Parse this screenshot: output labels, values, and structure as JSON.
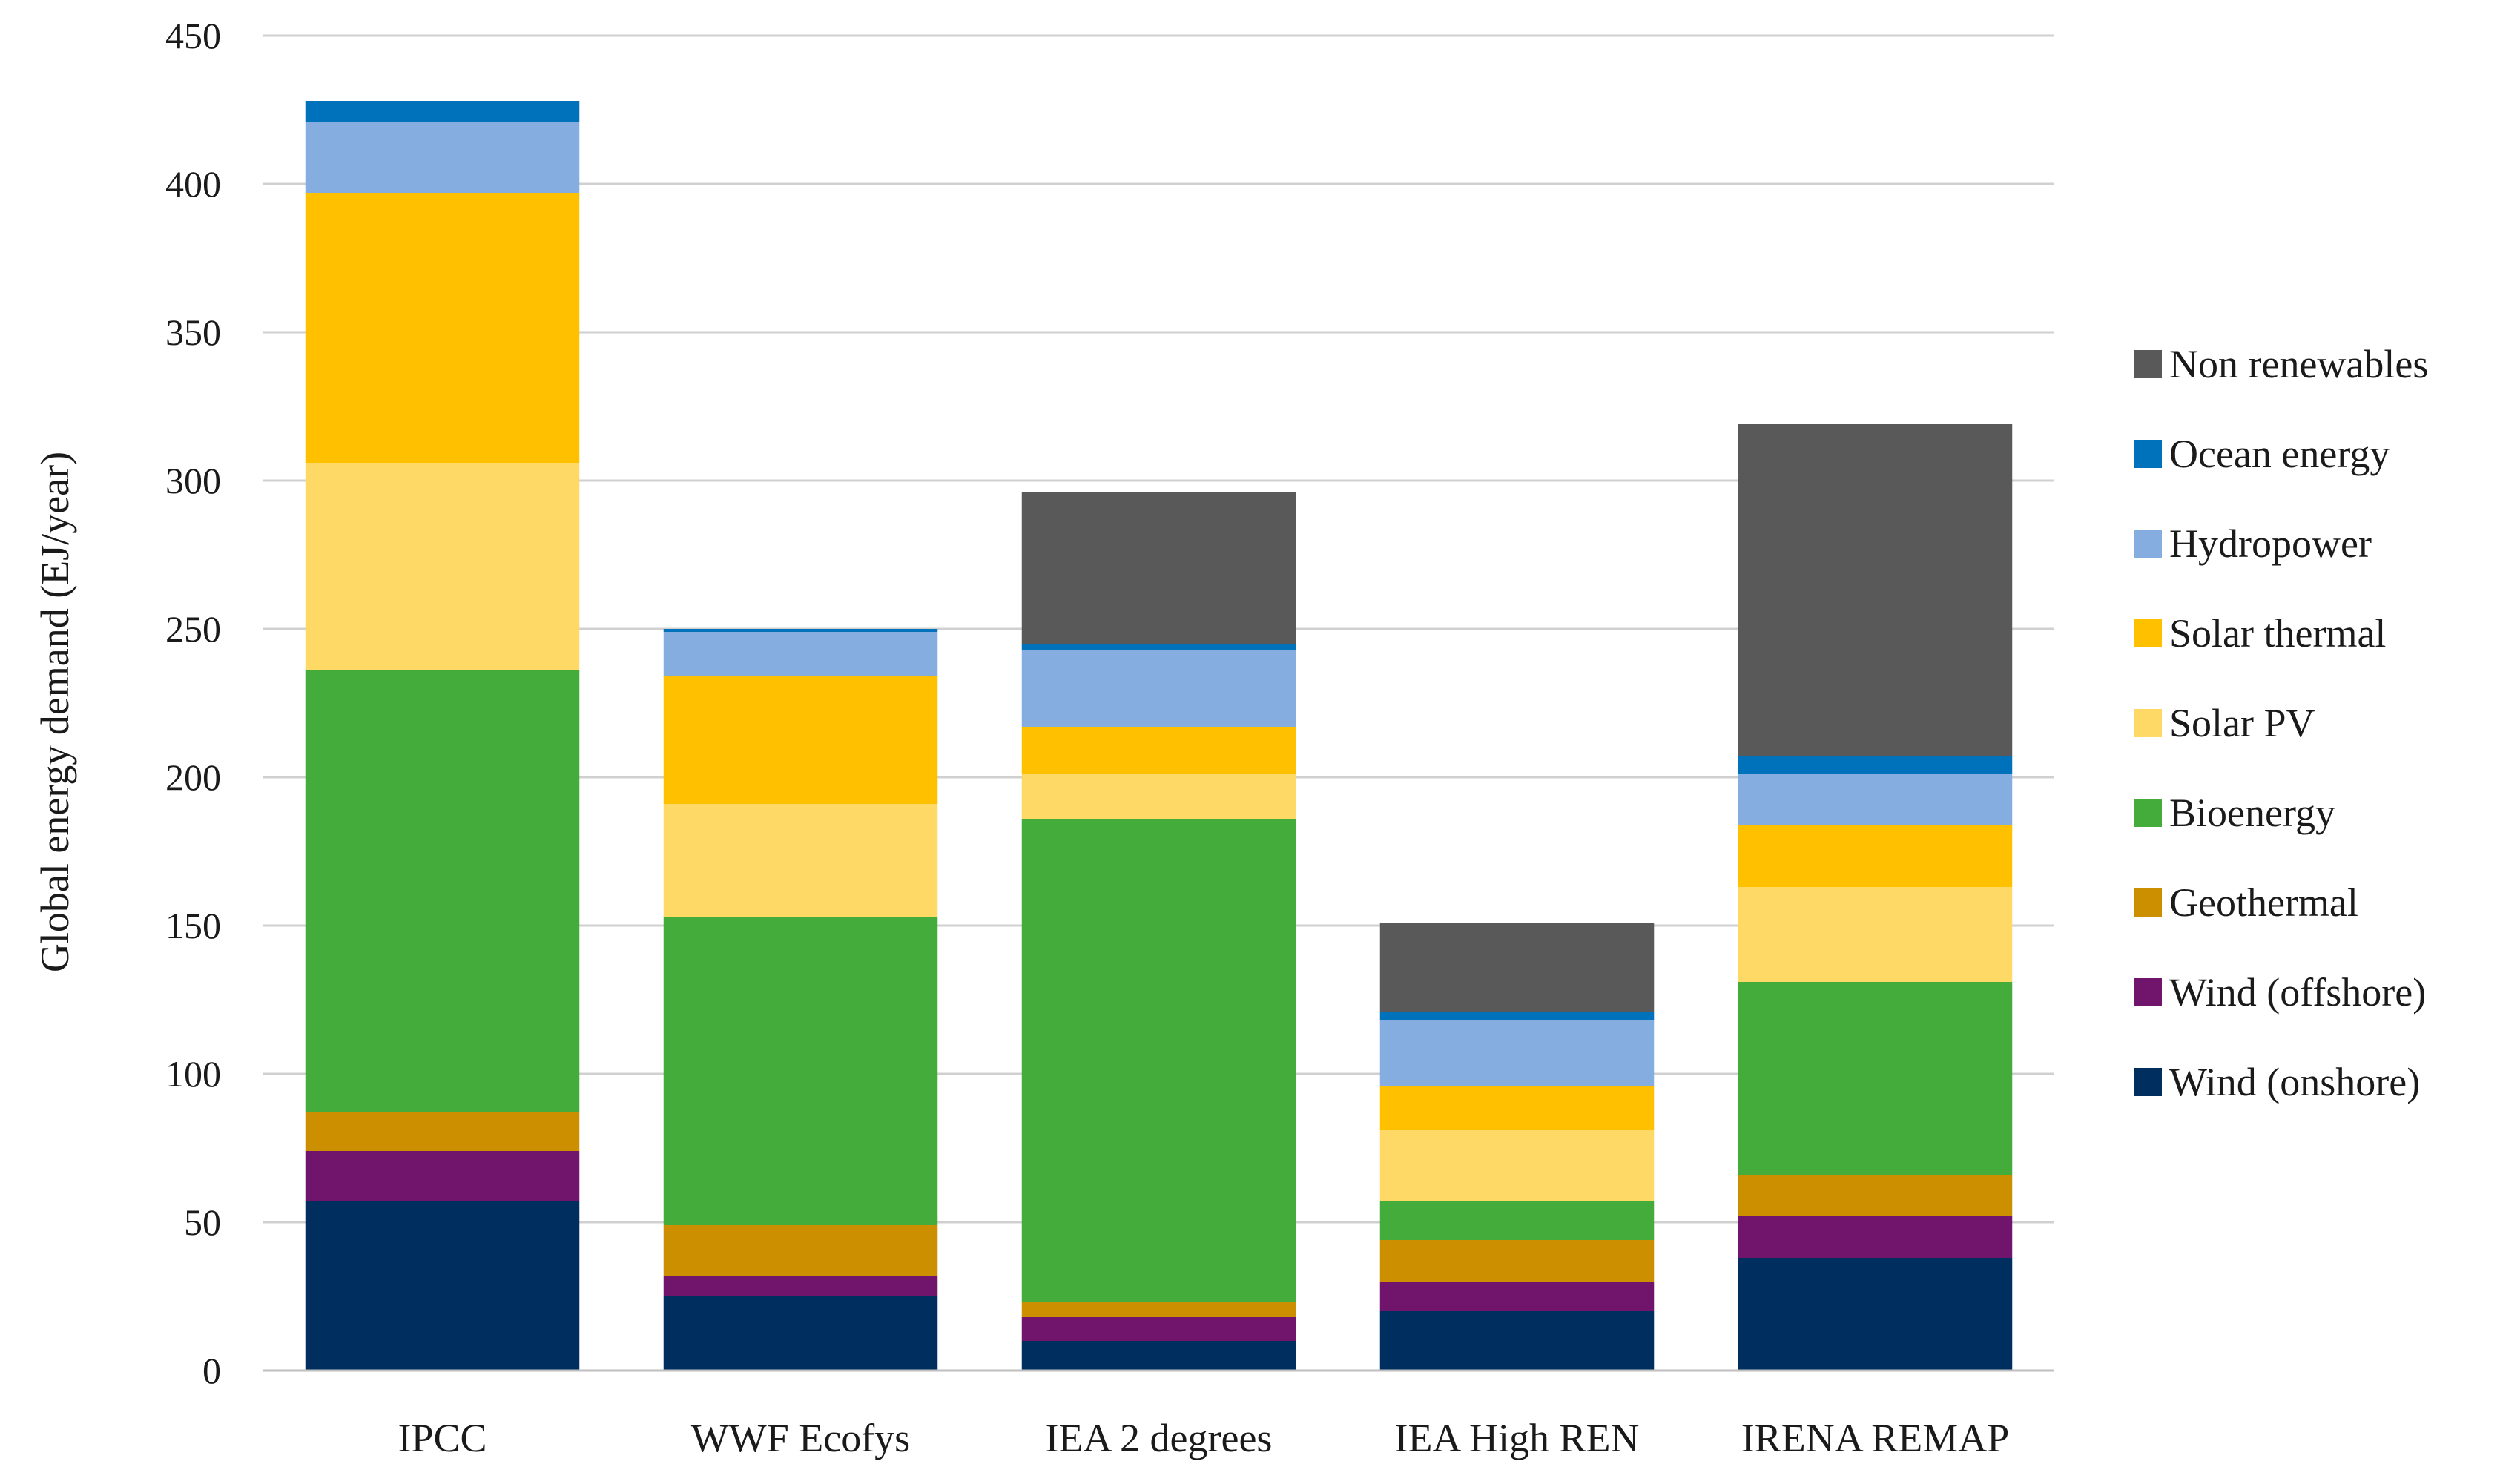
{
  "chart_data": {
    "type": "bar",
    "stacked": true,
    "title": "",
    "xlabel": "",
    "ylabel": "Global energy demand (EJ/year)",
    "ylim": [
      0,
      450
    ],
    "yticks": [
      0,
      50,
      100,
      150,
      200,
      250,
      300,
      350,
      400,
      450
    ],
    "grid": true,
    "legend_position": "right",
    "categories": [
      "IPCC",
      "WWF Ecofys",
      "IEA 2 degrees",
      "IEA High REN",
      "IRENA REMAP"
    ],
    "series": [
      {
        "name": "Wind (onshore)",
        "color": "#002f5f",
        "values": [
          57,
          25,
          10,
          20,
          38
        ]
      },
      {
        "name": "Wind (offshore)",
        "color": "#70146c",
        "values": [
          17,
          7,
          8,
          10,
          14
        ]
      },
      {
        "name": "Geothermal",
        "color": "#cc8f00",
        "values": [
          13,
          17,
          5,
          14,
          14
        ]
      },
      {
        "name": "Bioenergy",
        "color": "#43ac3b",
        "values": [
          149,
          104,
          163,
          13,
          65
        ]
      },
      {
        "name": "Solar PV",
        "color": "#ffd966",
        "values": [
          70,
          38,
          15,
          24,
          32
        ]
      },
      {
        "name": "Solar thermal",
        "color": "#ffc000",
        "values": [
          91,
          43,
          16,
          15,
          21
        ]
      },
      {
        "name": "Hydropower",
        "color": "#85ade0",
        "values": [
          24,
          15,
          26,
          22,
          17
        ]
      },
      {
        "name": "Ocean energy",
        "color": "#0071bb",
        "values": [
          7,
          1,
          2,
          3,
          6
        ]
      },
      {
        "name": "Non renewables",
        "color": "#595959",
        "values": [
          0,
          0,
          51,
          30,
          112
        ]
      }
    ]
  }
}
